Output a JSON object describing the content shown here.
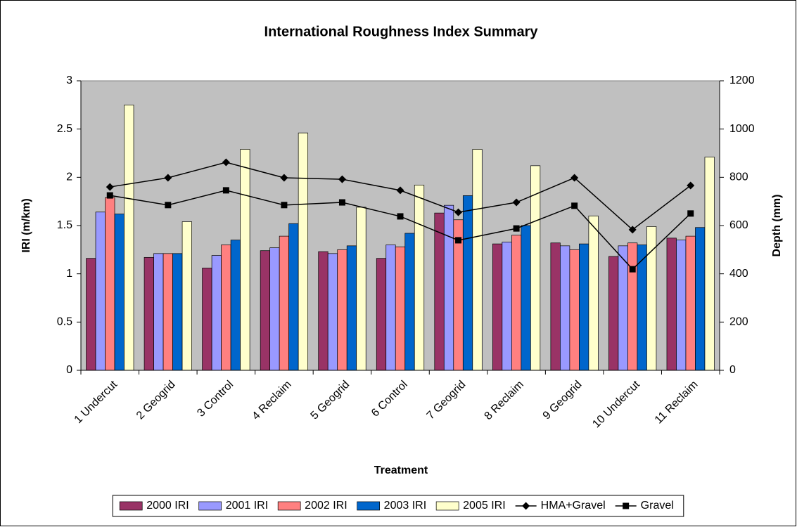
{
  "chart_data": {
    "type": "bar",
    "title": "International Roughness Index Summary",
    "x_label": "Treatment",
    "y_label": "IRI (m/km)",
    "y2_label": "Depth (mm)",
    "categories": [
      "1 Undercut",
      "2 Geogrid",
      "3 Control",
      "4 Reclaim",
      "5 Geogrid",
      "6 Control",
      "7 Geogrid",
      "8 Reclaim",
      "9 Geogrid",
      "10 Undercut",
      "11 Reclaim"
    ],
    "series": [
      {
        "name": "2000 IRI",
        "color": "#993366",
        "values": [
          1.16,
          1.17,
          1.06,
          1.24,
          1.23,
          1.16,
          1.63,
          1.31,
          1.32,
          1.18,
          1.37
        ]
      },
      {
        "name": "2001 IRI",
        "color": "#9999ff",
        "values": [
          1.64,
          1.21,
          1.19,
          1.27,
          1.21,
          1.3,
          1.71,
          1.33,
          1.29,
          1.29,
          1.35
        ]
      },
      {
        "name": "2002 IRI",
        "color": "#ff8080",
        "values": [
          1.79,
          1.21,
          1.3,
          1.39,
          1.25,
          1.28,
          1.56,
          1.4,
          1.25,
          1.32,
          1.39
        ]
      },
      {
        "name": "2003 IRI",
        "color": "#0066cc",
        "values": [
          1.62,
          1.21,
          1.35,
          1.52,
          1.29,
          1.42,
          1.81,
          1.5,
          1.31,
          1.3,
          1.48
        ]
      },
      {
        "name": "2005 IRI",
        "color": "#ffffcc",
        "values": [
          2.75,
          1.54,
          2.29,
          2.46,
          1.69,
          1.92,
          2.29,
          2.12,
          1.6,
          1.49,
          2.21
        ]
      },
      {
        "name": "HMA+Gravel",
        "color": "#000000",
        "type": "line",
        "marker": "diamond",
        "axis": "y2",
        "values": [
          760,
          798,
          862,
          798,
          792,
          746,
          655,
          696,
          798,
          583,
          766
        ]
      },
      {
        "name": "Gravel",
        "color": "#000000",
        "type": "line",
        "marker": "square",
        "axis": "y2",
        "values": [
          725,
          685,
          746,
          685,
          696,
          638,
          539,
          588,
          682,
          419,
          650
        ]
      }
    ],
    "ylim": [
      0,
      3
    ],
    "yticks": [
      0,
      0.5,
      1,
      1.5,
      2,
      2.5,
      3
    ],
    "y2lim": [
      0,
      1200
    ],
    "y2ticks": [
      0,
      200,
      400,
      600,
      800,
      1000,
      1200
    ],
    "plot_background": "#c0c0c0",
    "legend": "bottom"
  }
}
